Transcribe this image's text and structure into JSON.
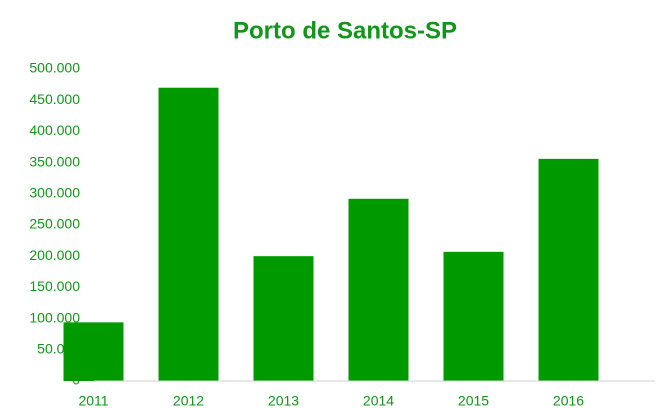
{
  "chart_data": {
    "type": "bar",
    "title": "Porto de Santos-SP",
    "categories": [
      "2011",
      "2012",
      "2013",
      "2014",
      "2015",
      "2016"
    ],
    "values": [
      94000,
      470000,
      200000,
      292000,
      207000,
      356000
    ],
    "color": "#009900",
    "ylim": [
      0,
      500000
    ],
    "yticks": [
      0,
      {
        "value": 50000,
        "label": "50.000"
      },
      {
        "value": 100000,
        "label": "100.000"
      },
      {
        "value": 150000,
        "label": "150.000"
      },
      {
        "value": 200000,
        "label": "200.000"
      },
      {
        "value": 250000,
        "label": "250.000"
      },
      {
        "value": 300000,
        "label": "300.000"
      },
      {
        "value": 350000,
        "label": "350.000"
      },
      {
        "value": 400000,
        "label": "400.000"
      },
      {
        "value": 450000,
        "label": "450.000"
      },
      {
        "value": 500000,
        "label": "500.000"
      }
    ],
    "grid": false
  }
}
